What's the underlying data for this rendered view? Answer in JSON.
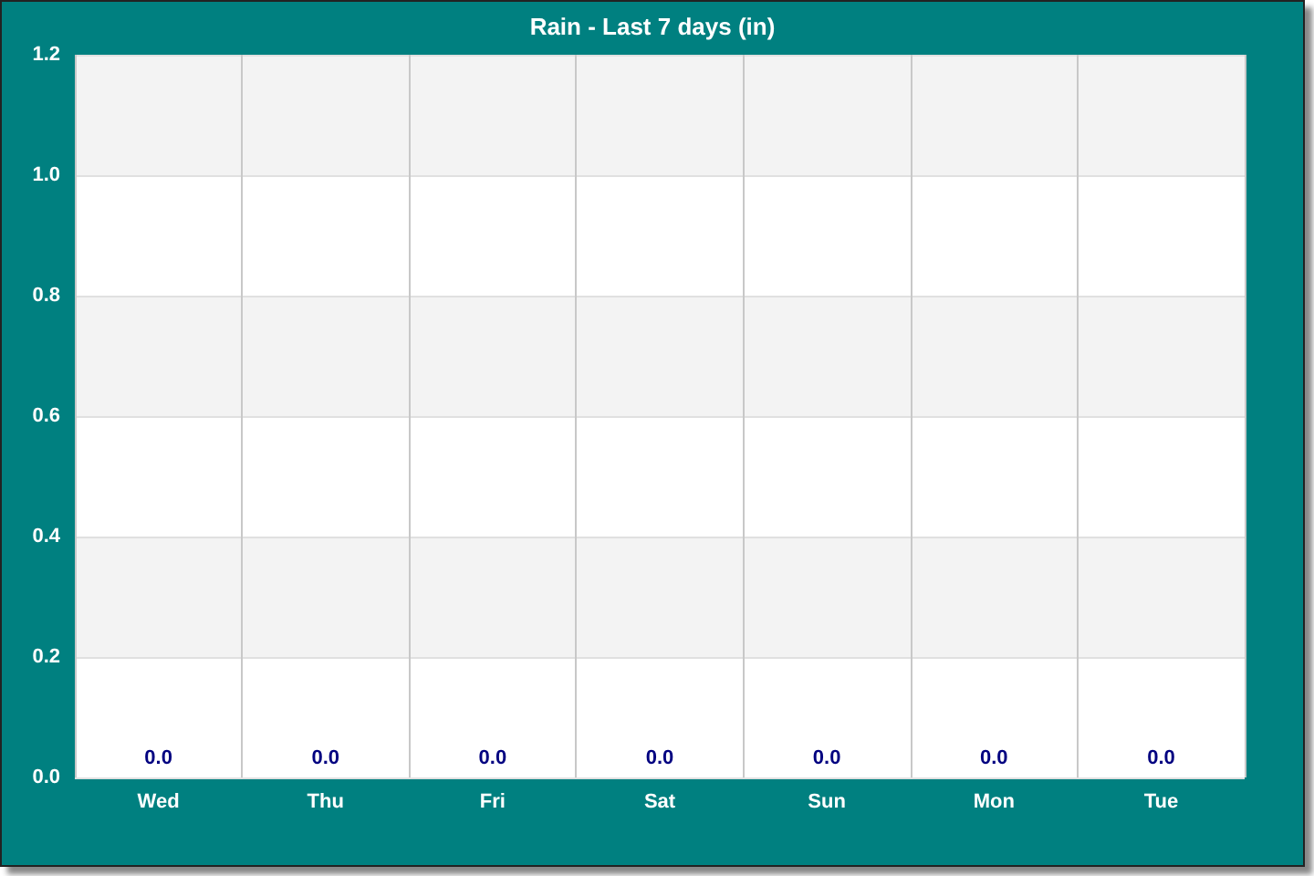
{
  "chart_data": {
    "type": "bar",
    "title": "Rain - Last 7 days (in)",
    "categories": [
      "Wed",
      "Thu",
      "Fri",
      "Sat",
      "Sun",
      "Mon",
      "Tue"
    ],
    "values": [
      0,
      0,
      0,
      0,
      0,
      0,
      0
    ],
    "value_labels": [
      "0.0",
      "0.0",
      "0.0",
      "0.0",
      "0.0",
      "0.0",
      "0.0"
    ],
    "ylim": [
      0,
      1.2
    ],
    "yticks": [
      {
        "value": 0,
        "label": "0.0"
      },
      0.2,
      0.4,
      0.6,
      0.8,
      {
        "value": 1,
        "label": "1.0"
      },
      1.2
    ],
    "grid": true
  }
}
